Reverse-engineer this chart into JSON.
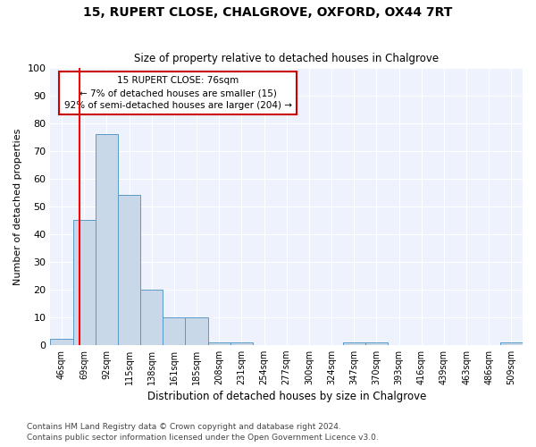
{
  "title": "15, RUPERT CLOSE, CHALGROVE, OXFORD, OX44 7RT",
  "subtitle": "Size of property relative to detached houses in Chalgrove",
  "xlabel_bottom": "Distribution of detached houses by size in Chalgrove",
  "ylabel": "Number of detached properties",
  "bin_labels": [
    "46sqm",
    "69sqm",
    "92sqm",
    "115sqm",
    "138sqm",
    "161sqm",
    "185sqm",
    "208sqm",
    "231sqm",
    "254sqm",
    "277sqm",
    "300sqm",
    "324sqm",
    "347sqm",
    "370sqm",
    "393sqm",
    "416sqm",
    "439sqm",
    "463sqm",
    "486sqm",
    "509sqm"
  ],
  "bar_values": [
    2,
    45,
    76,
    54,
    20,
    10,
    10,
    1,
    1,
    0,
    0,
    0,
    0,
    1,
    1,
    0,
    0,
    0,
    0,
    0,
    1
  ],
  "bar_color": "#c8d8e8",
  "bar_edge_color": "#5a9ac8",
  "annotation_text": "15 RUPERT CLOSE: 76sqm\n← 7% of detached houses are smaller (15)\n92% of semi-detached houses are larger (204) →",
  "annotation_box_color": "#ffffff",
  "annotation_box_edge": "#cc0000",
  "footer1": "Contains HM Land Registry data © Crown copyright and database right 2024.",
  "footer2": "Contains public sector information licensed under the Open Government Licence v3.0.",
  "ylim": [
    0,
    100
  ],
  "background_color": "#eef2fc"
}
